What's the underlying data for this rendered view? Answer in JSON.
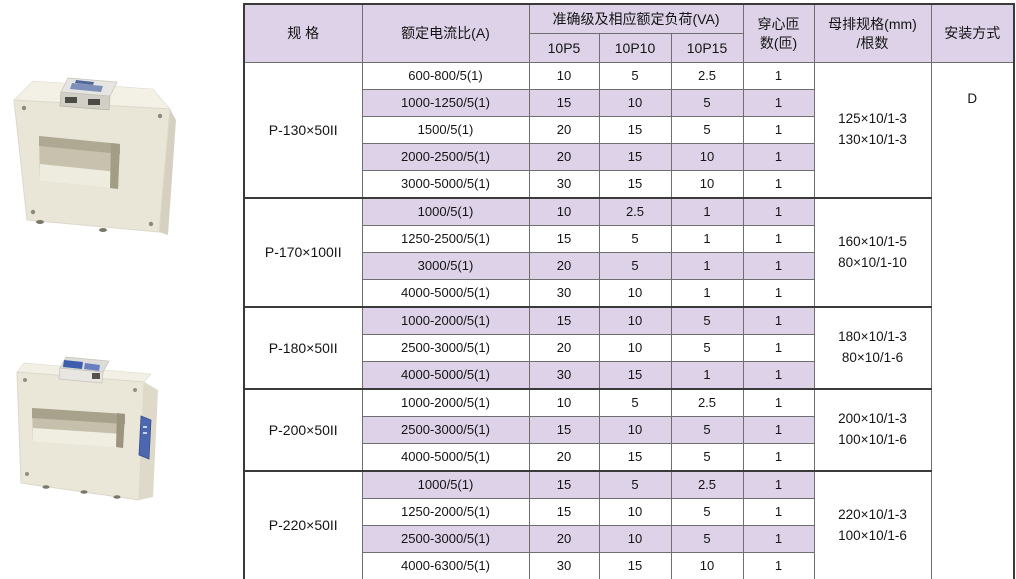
{
  "colors": {
    "stripe": "#ddd2e8",
    "header_bg": "#ddd2e8",
    "border_heavy": "#3a3a3a",
    "border_light": "#6f6f6f",
    "body_cream": "#e9e5d7",
    "label_blue": "#4c66b0"
  },
  "images": {
    "photo1": "current-transformer-square-photo",
    "photo2": "current-transformer-wide-photo"
  },
  "table": {
    "headers": {
      "spec": "规 格",
      "ratio": "额定电流比(A)",
      "accuracy_group": "准确级及相应额定负荷(VA)",
      "accuracy_classes": [
        "10P5",
        "10P10",
        "10P15"
      ],
      "turns_line1": "穿心匝",
      "turns_line2": "数(匝)",
      "busbar_line1": "母排规格(mm)",
      "busbar_line2": "/根数",
      "install": "安装方式"
    },
    "install_value": "D",
    "groups": [
      {
        "spec": "P-130×50II",
        "busbar": [
          "125×10/1-3",
          "130×10/1-3"
        ],
        "rows": [
          {
            "ratio": "600-800/5(1)",
            "p5": "10",
            "p10": "5",
            "p15": "2.5",
            "turns": "1"
          },
          {
            "ratio": "1000-1250/5(1)",
            "p5": "15",
            "p10": "10",
            "p15": "5",
            "turns": "1"
          },
          {
            "ratio": "1500/5(1)",
            "p5": "20",
            "p10": "15",
            "p15": "5",
            "turns": "1"
          },
          {
            "ratio": "2000-2500/5(1)",
            "p5": "20",
            "p10": "15",
            "p15": "10",
            "turns": "1"
          },
          {
            "ratio": "3000-5000/5(1)",
            "p5": "30",
            "p10": "15",
            "p15": "10",
            "turns": "1"
          }
        ]
      },
      {
        "spec": "P-170×100II",
        "busbar": [
          "160×10/1-5",
          "80×10/1-10"
        ],
        "rows": [
          {
            "ratio": "1000/5(1)",
            "p5": "10",
            "p10": "2.5",
            "p15": "1",
            "turns": "1"
          },
          {
            "ratio": "1250-2500/5(1)",
            "p5": "15",
            "p10": "5",
            "p15": "1",
            "turns": "1"
          },
          {
            "ratio": "3000/5(1)",
            "p5": "20",
            "p10": "5",
            "p15": "1",
            "turns": "1"
          },
          {
            "ratio": "4000-5000/5(1)",
            "p5": "30",
            "p10": "10",
            "p15": "1",
            "turns": "1"
          }
        ]
      },
      {
        "spec": "P-180×50II",
        "busbar": [
          "180×10/1-3",
          "80×10/1-6"
        ],
        "rows": [
          {
            "ratio": "1000-2000/5(1)",
            "p5": "15",
            "p10": "10",
            "p15": "5",
            "turns": "1"
          },
          {
            "ratio": "2500-3000/5(1)",
            "p5": "20",
            "p10": "10",
            "p15": "5",
            "turns": "1"
          },
          {
            "ratio": "4000-5000/5(1)",
            "p5": "30",
            "p10": "15",
            "p15": "1",
            "turns": "1"
          }
        ]
      },
      {
        "spec": "P-200×50II",
        "busbar": [
          "200×10/1-3",
          "100×10/1-6"
        ],
        "rows": [
          {
            "ratio": "1000-2000/5(1)",
            "p5": "10",
            "p10": "5",
            "p15": "2.5",
            "turns": "1"
          },
          {
            "ratio": "2500-3000/5(1)",
            "p5": "15",
            "p10": "10",
            "p15": "5",
            "turns": "1"
          },
          {
            "ratio": "4000-5000/5(1)",
            "p5": "20",
            "p10": "15",
            "p15": "5",
            "turns": "1"
          }
        ]
      },
      {
        "spec": "P-220×50II",
        "busbar": [
          "220×10/1-3",
          "100×10/1-6"
        ],
        "rows": [
          {
            "ratio": "1000/5(1)",
            "p5": "15",
            "p10": "5",
            "p15": "2.5",
            "turns": "1"
          },
          {
            "ratio": "1250-2000/5(1)",
            "p5": "15",
            "p10": "10",
            "p15": "5",
            "turns": "1"
          },
          {
            "ratio": "2500-3000/5(1)",
            "p5": "20",
            "p10": "10",
            "p15": "5",
            "turns": "1"
          },
          {
            "ratio": "4000-6300/5(1)",
            "p5": "30",
            "p10": "15",
            "p15": "10",
            "turns": "1"
          }
        ]
      }
    ]
  }
}
